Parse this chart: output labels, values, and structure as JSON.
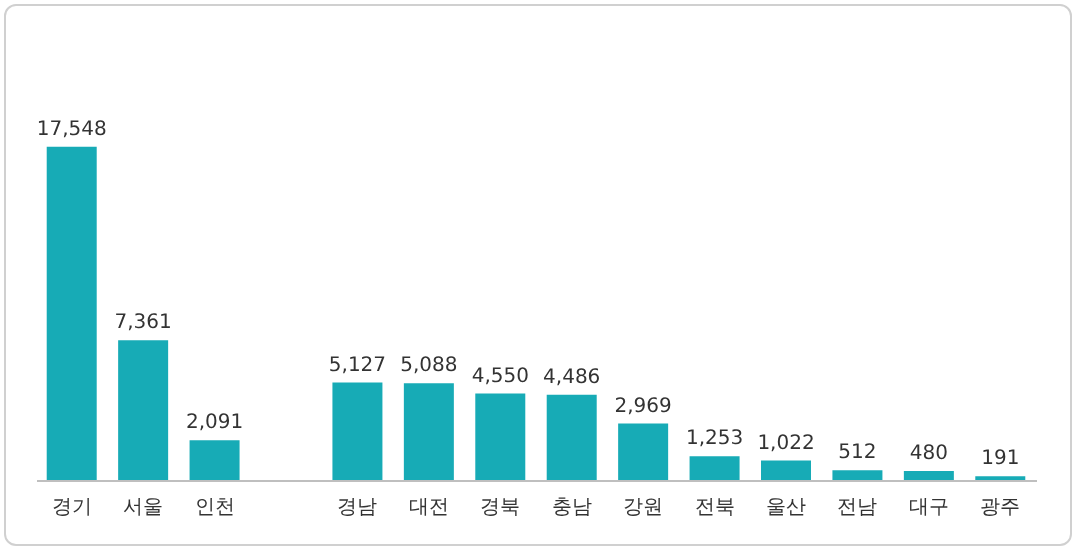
{
  "chart_data": {
    "type": "bar",
    "categories": [
      "경기",
      "서울",
      "인천",
      null,
      "경남",
      "대전",
      "경북",
      "충남",
      "강원",
      "전북",
      "울산",
      "전남",
      "대구",
      "광주"
    ],
    "values": [
      17548,
      7361,
      2091,
      null,
      5127,
      5088,
      4550,
      4486,
      2969,
      1253,
      1022,
      512,
      480,
      191
    ],
    "value_labels": [
      "17,548",
      "7,361",
      "2,091",
      null,
      "5,127",
      "5,088",
      "4,550",
      "4,486",
      "2,969",
      "1,253",
      "1,022",
      "512",
      "480",
      "191"
    ],
    "color": "#17abb6"
  }
}
